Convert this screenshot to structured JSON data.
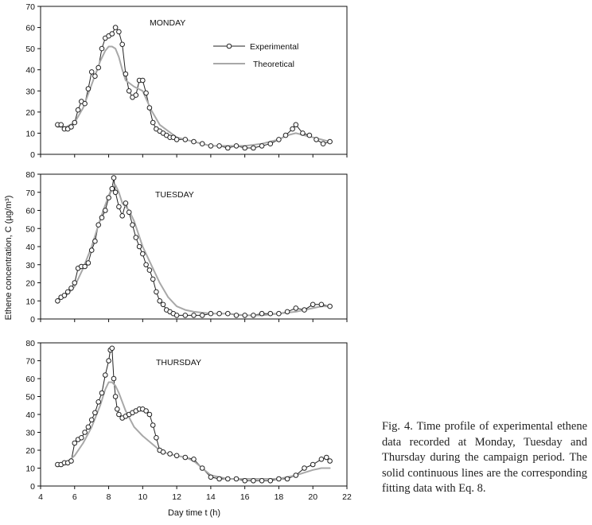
{
  "chart_data": {
    "type": "line",
    "shared": {
      "xlabel": "Day time t (h)",
      "ylabel": "Ethene concentration, C (µg/m³)",
      "xlim": [
        4,
        22
      ],
      "xticks": [
        4,
        6,
        8,
        10,
        12,
        14,
        16,
        18,
        20,
        22
      ],
      "legend": [
        "Experimental",
        "Theoretical"
      ],
      "colors": {
        "experimental": "#222222",
        "theoretical": "#a8a8a8",
        "axis": "#111111"
      }
    },
    "panels": [
      {
        "title": "MONDAY",
        "ylim": [
          0,
          70
        ],
        "yticks": [
          0,
          10,
          20,
          30,
          40,
          50,
          60,
          70
        ],
        "series": [
          {
            "name": "Experimental",
            "x": [
              5.0,
              5.2,
              5.4,
              5.6,
              5.8,
              6.0,
              6.2,
              6.4,
              6.6,
              6.8,
              7.0,
              7.2,
              7.4,
              7.6,
              7.8,
              8.0,
              8.2,
              8.4,
              8.6,
              8.8,
              9.0,
              9.2,
              9.4,
              9.6,
              9.8,
              10.0,
              10.2,
              10.4,
              10.6,
              10.8,
              11.0,
              11.2,
              11.4,
              11.6,
              11.8,
              12.0,
              12.5,
              13.0,
              13.5,
              14.0,
              14.5,
              15.0,
              15.5,
              16.0,
              16.5,
              17.0,
              17.5,
              18.0,
              18.4,
              18.8,
              19.0,
              19.4,
              19.8,
              20.2,
              20.6,
              21.0
            ],
            "y": [
              14,
              14,
              12,
              12,
              13,
              15,
              21,
              25,
              24,
              31,
              39,
              37,
              41,
              50,
              55,
              56,
              57,
              60,
              58,
              52,
              38,
              30,
              27,
              28,
              35,
              35,
              29,
              22,
              15,
              12,
              11,
              10,
              9,
              8,
              8,
              7,
              7,
              6,
              5,
              4,
              4,
              3,
              4,
              3,
              3,
              4,
              5,
              7,
              9,
              12,
              14,
              10,
              9,
              7,
              5,
              6
            ]
          },
          {
            "name": "Theoretical",
            "x": [
              5.0,
              5.5,
              6.0,
              6.5,
              7.0,
              7.5,
              7.8,
              8.0,
              8.2,
              8.4,
              8.6,
              8.8,
              9.0,
              9.5,
              10.0,
              10.5,
              11.0,
              11.5,
              12.0,
              13.0,
              14.0,
              15.0,
              16.0,
              17.0,
              18.0,
              18.5,
              19.0,
              19.5,
              20.0,
              20.5,
              21.0
            ],
            "y": [
              13,
              13,
              15,
              22,
              33,
              44,
              49,
              51,
              51,
              50,
              46,
              40,
              35,
              32,
              30,
              21,
              14,
              11,
              8,
              6,
              4,
              4,
              4,
              5,
              7,
              9,
              10,
              9,
              8,
              7,
              6
            ]
          }
        ]
      },
      {
        "title": "TUESDAY",
        "ylim": [
          0,
          80
        ],
        "yticks": [
          0,
          10,
          20,
          30,
          40,
          50,
          60,
          70,
          80
        ],
        "series": [
          {
            "name": "Experimental",
            "x": [
              5.0,
              5.2,
              5.4,
              5.6,
              5.8,
              6.0,
              6.2,
              6.4,
              6.6,
              6.8,
              7.0,
              7.2,
              7.4,
              7.6,
              7.8,
              8.0,
              8.2,
              8.3,
              8.4,
              8.6,
              8.8,
              9.0,
              9.2,
              9.4,
              9.6,
              9.8,
              10.0,
              10.2,
              10.4,
              10.6,
              10.8,
              11.0,
              11.2,
              11.4,
              11.6,
              11.8,
              12.0,
              12.5,
              13.0,
              13.5,
              14.0,
              14.5,
              15.0,
              15.5,
              16.0,
              16.5,
              17.0,
              17.5,
              18.0,
              18.5,
              19.0,
              19.5,
              20.0,
              20.5,
              21.0
            ],
            "y": [
              10,
              12,
              13,
              15,
              17,
              20,
              28,
              29,
              29,
              31,
              38,
              43,
              52,
              56,
              60,
              67,
              72,
              78,
              70,
              62,
              57,
              64,
              59,
              52,
              45,
              40,
              36,
              30,
              27,
              22,
              15,
              10,
              8,
              5,
              4,
              3,
              2,
              2,
              2,
              2,
              3,
              3,
              3,
              2,
              2,
              2,
              3,
              3,
              3,
              4,
              6,
              5,
              8,
              8,
              7
            ]
          },
          {
            "name": "Theoretical",
            "x": [
              5.0,
              5.5,
              6.0,
              6.5,
              7.0,
              7.5,
              7.8,
              8.0,
              8.2,
              8.4,
              8.6,
              8.8,
              9.0,
              9.2,
              9.5,
              10.0,
              10.5,
              11.0,
              11.5,
              12.0,
              12.5,
              13.0,
              14.0,
              15.0,
              16.0,
              17.0,
              18.0,
              19.0,
              20.0,
              20.5,
              21.0
            ],
            "y": [
              11,
              13,
              18,
              28,
              40,
              55,
              63,
              68,
              73,
              74,
              70,
              64,
              62,
              60,
              54,
              40,
              30,
              20,
              12,
              7,
              5,
              4,
              3,
              3,
              2,
              2,
              3,
              4,
              6,
              7,
              7
            ]
          }
        ]
      },
      {
        "title": "THURSDAY",
        "ylim": [
          0,
          80
        ],
        "yticks": [
          0,
          10,
          20,
          30,
          40,
          50,
          60,
          70,
          80
        ],
        "series": [
          {
            "name": "Experimental",
            "x": [
              5.0,
              5.2,
              5.4,
              5.6,
              5.8,
              6.0,
              6.2,
              6.4,
              6.6,
              6.8,
              7.0,
              7.2,
              7.4,
              7.6,
              7.8,
              8.0,
              8.1,
              8.2,
              8.3,
              8.4,
              8.5,
              8.6,
              8.8,
              9.0,
              9.2,
              9.4,
              9.6,
              9.8,
              10.0,
              10.2,
              10.4,
              10.6,
              10.8,
              11.0,
              11.2,
              11.6,
              12.0,
              12.5,
              13.0,
              13.5,
              14.0,
              14.5,
              15.0,
              15.5,
              16.0,
              16.5,
              17.0,
              17.5,
              18.0,
              18.5,
              19.0,
              19.5,
              20.0,
              20.5,
              20.8,
              21.0
            ],
            "y": [
              12,
              12,
              13,
              13,
              14,
              24,
              26,
              27,
              30,
              33,
              37,
              41,
              47,
              52,
              62,
              70,
              76,
              77,
              60,
              50,
              43,
              40,
              38,
              39,
              40,
              41,
              42,
              43,
              43,
              42,
              40,
              34,
              27,
              20,
              19,
              18,
              17,
              16,
              15,
              10,
              5,
              4,
              4,
              4,
              3,
              3,
              3,
              3,
              4,
              4,
              6,
              10,
              12,
              15,
              16,
              14
            ]
          },
          {
            "name": "Theoretical",
            "x": [
              5.0,
              5.5,
              6.0,
              6.5,
              7.0,
              7.5,
              7.8,
              8.0,
              8.2,
              8.4,
              8.6,
              8.8,
              9.0,
              9.5,
              10.0,
              10.5,
              11.0,
              11.5,
              12.0,
              12.5,
              13.0,
              13.5,
              14.0,
              15.0,
              16.0,
              17.0,
              18.0,
              19.0,
              20.0,
              20.5,
              21.0
            ],
            "y": [
              12,
              13,
              17,
              24,
              33,
              45,
              54,
              58,
              58,
              56,
              52,
              47,
              42,
              33,
              28,
              24,
              20,
              18,
              17,
              16,
              14,
              10,
              6,
              4,
              4,
              4,
              4,
              6,
              9,
              10,
              10
            ]
          }
        ]
      }
    ]
  },
  "caption": "Fig. 4. Time profile of experimental ethene data recorded at Monday, Tuesday and Thursday during the campaign period. The solid continuous lines are the corresponding fitting data with Eq. 8."
}
